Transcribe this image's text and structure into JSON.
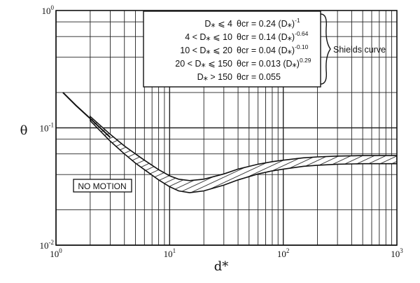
{
  "chart_data": {
    "type": "line",
    "title": "",
    "xlabel": "d*",
    "ylabel": "θ",
    "xscale": "log",
    "yscale": "log",
    "xlim": [
      1,
      1000
    ],
    "ylim": [
      0.01,
      1
    ],
    "grid": true,
    "x_ticks": [
      {
        "base": "10",
        "exp": "0"
      },
      {
        "base": "10",
        "exp": "1"
      },
      {
        "base": "10",
        "exp": "2"
      },
      {
        "base": "10",
        "exp": "3"
      }
    ],
    "y_ticks": [
      {
        "base": "10",
        "exp": "0"
      },
      {
        "base": "10",
        "exp": "-1"
      },
      {
        "base": "10",
        "exp": "-2"
      }
    ],
    "legend": {
      "position": "top-right",
      "bracket_label": "Shields curve",
      "rows": [
        {
          "range": "D⁎ ⩽ 4",
          "formula": "θcr = 0.24 (D⁎)",
          "exp": "-1"
        },
        {
          "range": "4 < D⁎ ⩽ 10",
          "formula": "θcr = 0.14 (D⁎)",
          "exp": "-0.64"
        },
        {
          "range": "10 < D⁎ ⩽ 20",
          "formula": "θcr = 0.04 (D⁎)",
          "exp": "-0.10"
        },
        {
          "range": "20 < D⁎ ⩽ 150",
          "formula": "θcr = 0.013 (D⁎)",
          "exp": "0.29"
        },
        {
          "range": "D⁎ > 150",
          "formula": "θcr = 0.055",
          "exp": ""
        }
      ]
    },
    "annotation": "NO MOTION",
    "series": [
      {
        "style": "solid",
        "x": [
          1.15,
          1.5,
          2.0,
          2.5,
          3.0
        ],
        "y": [
          0.2,
          0.155,
          0.12,
          0.098,
          0.083
        ]
      },
      {
        "style": "hatched-band-upper",
        "x": [
          2.0,
          3.0,
          4.0,
          5.0,
          6.0,
          8.0,
          10.0,
          12.0,
          15.0,
          20.0,
          30.0,
          40.0,
          60.0,
          80.0,
          100.0,
          150.0,
          200.0,
          300.0,
          500.0,
          1000.0
        ],
        "y": [
          0.125,
          0.088,
          0.07,
          0.06,
          0.053,
          0.044,
          0.039,
          0.0365,
          0.0355,
          0.0365,
          0.0405,
          0.0445,
          0.049,
          0.0515,
          0.053,
          0.0555,
          0.0565,
          0.0575,
          0.058,
          0.058
        ]
      },
      {
        "style": "hatched-band-lower",
        "x": [
          2.0,
          3.0,
          4.0,
          5.0,
          6.0,
          8.0,
          10.0,
          12.0,
          15.0,
          20.0,
          30.0,
          40.0,
          60.0,
          80.0,
          100.0,
          150.0,
          200.0,
          300.0,
          500.0,
          1000.0
        ],
        "y": [
          0.115,
          0.077,
          0.06,
          0.05,
          0.044,
          0.036,
          0.0315,
          0.029,
          0.028,
          0.029,
          0.0325,
          0.036,
          0.0405,
          0.043,
          0.0445,
          0.047,
          0.048,
          0.049,
          0.0495,
          0.0495
        ]
      }
    ]
  }
}
